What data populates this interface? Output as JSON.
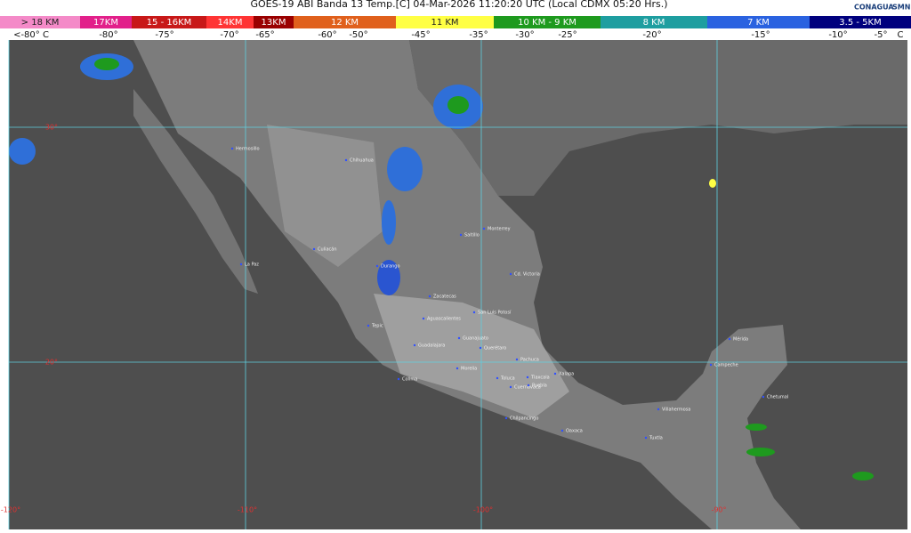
{
  "header": {
    "title": "GOES-19 ABI Banda 13 Temp.[C] 04-Mar-2026 11:20:20 UTC (Local CDMX  05:20 Hrs.)",
    "logos": [
      "CONAGUA",
      "SMN"
    ]
  },
  "legend": {
    "altitudes": [
      {
        "label": "> 18 KM",
        "color": "#f48ac8"
      },
      {
        "label": "17KM",
        "color": "#e2208a"
      },
      {
        "label": "15 - 16KM",
        "color": "#c81818"
      },
      {
        "label": "14KM",
        "color": "#ff3434"
      },
      {
        "label": "13KM",
        "color": "#9a0000"
      },
      {
        "label": "12 KM",
        "color": "#e0601c"
      },
      {
        "label": "11 KM",
        "color": "#ffff44"
      },
      {
        "label": "10 KM - 9 KM",
        "color": "#1e9a1e"
      },
      {
        "label": "8 KM",
        "color": "#1e9ea0"
      },
      {
        "label": "7 KM",
        "color": "#2a62e0"
      },
      {
        "label": "3.5 - 5KM",
        "color": "#00007e"
      }
    ],
    "temperatures": [
      "<-80° C",
      "-80°",
      "-75°",
      "-70°",
      "-65°",
      "-60°",
      "-50°",
      "-45°",
      "-35°",
      "-30°",
      "-25°",
      "-20°",
      "-15°",
      "-10°",
      "-5°",
      "C"
    ]
  },
  "grid": {
    "latitudes": [
      "30°",
      "20°"
    ],
    "longitudes": [
      "-120°",
      "-110°",
      "-100°",
      "-90°"
    ]
  },
  "cities": [
    "Hermosillo",
    "Chihuahua",
    "Culiacán",
    "La Paz",
    "Durango",
    "Monterrey",
    "Saltillo",
    "Cd. Victoria",
    "Zacatecas",
    "San Luis Potosí",
    "Aguascalientes",
    "Tepic",
    "Guadalajara",
    "Guanajuato",
    "Querétaro",
    "Pachuca",
    "Morelia",
    "Xalapa",
    "Colima",
    "Toluca",
    "Tlaxcala",
    "Cuernavaca",
    "Puebla",
    "Chilpancingo",
    "Oaxaca",
    "Villahermosa",
    "Tuxtla",
    "Campeche",
    "Mérida",
    "Chetumal"
  ]
}
